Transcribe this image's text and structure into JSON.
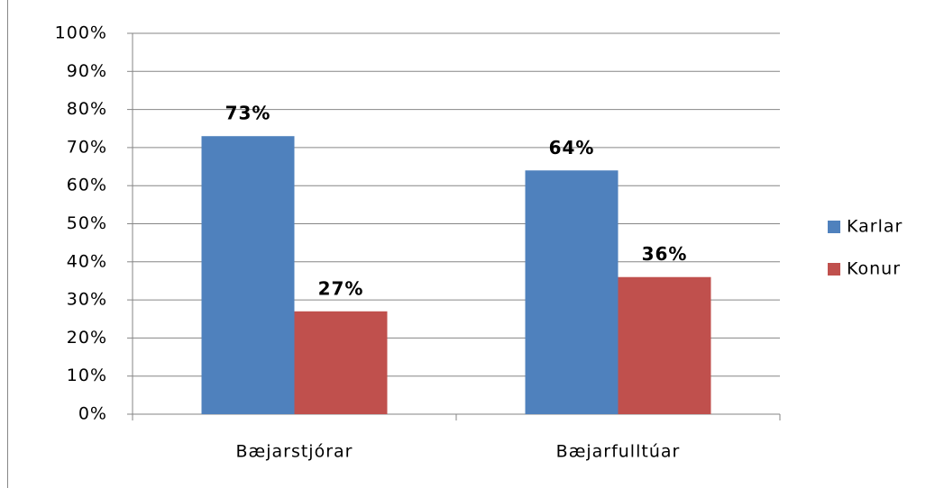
{
  "chart_data": {
    "type": "bar",
    "categories": [
      "Bæjarstjórar",
      "Bæjarfulltúar"
    ],
    "series": [
      {
        "name": "Karlar",
        "color": "#4f81bd",
        "values": [
          73,
          64
        ],
        "value_labels": [
          "73%",
          "64%"
        ]
      },
      {
        "name": "Konur",
        "color": "#c0504d",
        "values": [
          27,
          36
        ],
        "value_labels": [
          "27%",
          "36%"
        ]
      }
    ],
    "ylim": [
      0,
      100
    ],
    "yticks": [
      {
        "value": 0,
        "label": "0%"
      },
      {
        "value": 10,
        "label": "10%"
      },
      {
        "value": 20,
        "label": "20%"
      },
      {
        "value": 30,
        "label": "30%"
      },
      {
        "value": 40,
        "label": "40%"
      },
      {
        "value": 50,
        "label": "50%"
      },
      {
        "value": 60,
        "label": "60%"
      },
      {
        "value": 70,
        "label": "70%"
      },
      {
        "value": 80,
        "label": "80%"
      },
      {
        "value": 90,
        "label": "90%"
      },
      {
        "value": 100,
        "label": "100%"
      }
    ],
    "grid": true,
    "legend": "right"
  }
}
